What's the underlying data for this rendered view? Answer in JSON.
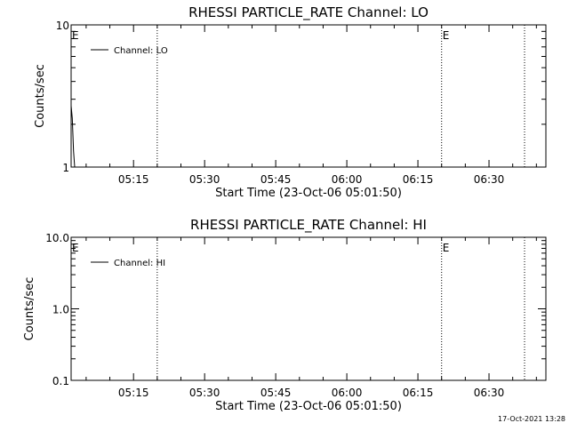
{
  "footer_timestamp": "17-Oct-2021 13:28",
  "chart_data": [
    {
      "type": "line",
      "title": "RHESSI PARTICLE_RATE Channel: LO",
      "xlabel": "Start Time (23-Oct-06 05:01:50)",
      "ylabel": "Counts/sec",
      "yscale": "log",
      "ylim": [
        1,
        10
      ],
      "y_tick_labels": [
        "1",
        "10"
      ],
      "xlim": [
        "05:01:50",
        "06:42:00"
      ],
      "x_ticks": [
        "05:15",
        "05:30",
        "05:45",
        "06:00",
        "06:15",
        "06:30"
      ],
      "legend": {
        "placement": "top-left",
        "entries": [
          "Channel: LO"
        ]
      },
      "grid": false,
      "vertical_markers": [
        {
          "time": "05:01:50",
          "label": "E"
        },
        {
          "time": "05:20:00",
          "label": ""
        },
        {
          "time": "06:20:00",
          "label": "E"
        },
        {
          "time": "06:37:30",
          "label": ""
        }
      ],
      "series": [
        {
          "name": "Channel: LO",
          "x": [
            "05:01:50",
            "05:02:05",
            "05:02:20",
            "05:02:35"
          ],
          "y": [
            2.7,
            2.2,
            1.3,
            1.0
          ]
        }
      ]
    },
    {
      "type": "line",
      "title": "RHESSI PARTICLE_RATE Channel: HI",
      "xlabel": "Start Time (23-Oct-06 05:01:50)",
      "ylabel": "Counts/sec",
      "yscale": "log",
      "ylim": [
        0.1,
        10
      ],
      "y_tick_labels": [
        "0.1",
        "1.0",
        "10.0"
      ],
      "xlim": [
        "05:01:50",
        "06:42:00"
      ],
      "x_ticks": [
        "05:15",
        "05:30",
        "05:45",
        "06:00",
        "06:15",
        "06:30"
      ],
      "legend": {
        "placement": "top-left",
        "entries": [
          "Channel: HI"
        ]
      },
      "grid": false,
      "vertical_markers": [
        {
          "time": "05:01:50",
          "label": "E"
        },
        {
          "time": "05:20:00",
          "label": ""
        },
        {
          "time": "06:20:00",
          "label": "E"
        },
        {
          "time": "06:37:30",
          "label": ""
        }
      ],
      "series": [
        {
          "name": "Channel: HI",
          "x": [],
          "y": []
        }
      ]
    }
  ]
}
